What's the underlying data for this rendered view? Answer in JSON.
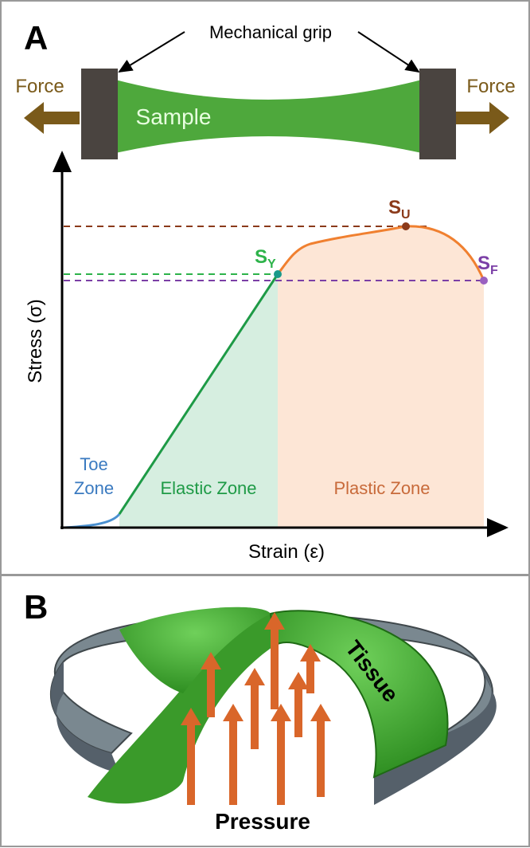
{
  "panel_a": {
    "label": "A",
    "grip_label": "Mechanical grip",
    "force_left": "Force",
    "force_right": "Force",
    "sample": "Sample",
    "y_axis": "Stress (σ)",
    "x_axis": "Strain (ε)",
    "points": [
      {
        "main": "S",
        "sub": "Y"
      },
      {
        "main": "S",
        "sub": "U"
      },
      {
        "main": "S",
        "sub": "F"
      }
    ],
    "zones": {
      "toe": [
        "Toe",
        "Zone"
      ],
      "elastic": "Elastic Zone",
      "plastic": "Plastic Zone"
    }
  },
  "panel_b": {
    "label": "B",
    "tissue": "Tissue",
    "pressure": "Pressure"
  }
}
